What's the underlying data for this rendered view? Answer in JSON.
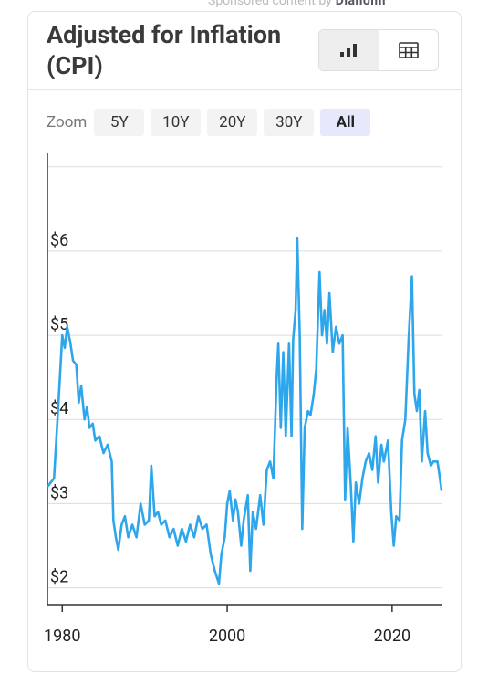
{
  "header": {
    "sponsor": "Sponsored content by",
    "brand": "Dianomi"
  },
  "card": {
    "title": "Adjusted for Inflation (CPI)",
    "zoom_label": "Zoom",
    "zoom_options": [
      "5Y",
      "10Y",
      "20Y",
      "30Y",
      "All"
    ],
    "active_zoom_index": 4
  },
  "chart_data": {
    "type": "line",
    "x": [
      1978.2,
      1978.6,
      1979.0,
      1979.3,
      1979.6,
      1980.0,
      1980.3,
      1980.6,
      1981.0,
      1981.3,
      1981.7,
      1982.0,
      1982.3,
      1982.7,
      1983.0,
      1983.3,
      1983.7,
      1984.0,
      1984.5,
      1985.0,
      1985.5,
      1986.0,
      1986.2,
      1986.5,
      1986.8,
      1987.2,
      1987.6,
      1988.0,
      1988.5,
      1989.0,
      1989.5,
      1990.0,
      1990.5,
      1990.8,
      1991.2,
      1991.6,
      1992.0,
      1992.5,
      1993.0,
      1993.5,
      1994.0,
      1994.5,
      1995.0,
      1995.5,
      1996.0,
      1996.5,
      1997.0,
      1997.5,
      1998.0,
      1998.5,
      1999.0,
      1999.3,
      1999.7,
      2000.0,
      2000.3,
      2000.7,
      2001.0,
      2001.3,
      2001.7,
      2002.0,
      2002.5,
      2002.8,
      2003.1,
      2003.5,
      2004.0,
      2004.4,
      2004.8,
      2005.2,
      2005.6,
      2006.0,
      2006.2,
      2006.5,
      2006.8,
      2007.1,
      2007.5,
      2007.8,
      2008.0,
      2008.3,
      2008.5,
      2008.8,
      2009.1,
      2009.4,
      2009.8,
      2010.1,
      2010.5,
      2010.8,
      2011.2,
      2011.5,
      2011.8,
      2012.1,
      2012.4,
      2012.8,
      2013.2,
      2013.6,
      2014.0,
      2014.3,
      2014.6,
      2015.0,
      2015.3,
      2015.6,
      2016.0,
      2016.4,
      2016.8,
      2017.2,
      2017.6,
      2018.0,
      2018.3,
      2018.7,
      2019.0,
      2019.5,
      2019.9,
      2020.2,
      2020.5,
      2020.9,
      2021.2,
      2021.6,
      2022.0,
      2022.4,
      2022.7,
      2023.0,
      2023.3,
      2023.6,
      2024.0,
      2024.3,
      2024.7,
      2025.0,
      2025.5,
      2025.8,
      2026.0
    ],
    "series": [
      {
        "name": "Adjusted for Inflation (CPI)",
        "color": "#2ea6ec",
        "values": [
          3.2,
          3.25,
          3.3,
          3.8,
          4.3,
          5.0,
          4.85,
          5.1,
          4.9,
          4.7,
          4.65,
          4.2,
          4.4,
          4.0,
          4.15,
          3.9,
          3.95,
          3.75,
          3.8,
          3.6,
          3.7,
          3.5,
          2.8,
          2.6,
          2.45,
          2.75,
          2.85,
          2.6,
          2.75,
          2.6,
          3.0,
          2.75,
          2.8,
          3.45,
          2.85,
          2.9,
          2.75,
          2.8,
          2.6,
          2.7,
          2.5,
          2.7,
          2.55,
          2.75,
          2.6,
          2.85,
          2.7,
          2.75,
          2.4,
          2.2,
          2.05,
          2.4,
          2.6,
          3.0,
          3.15,
          2.8,
          3.05,
          2.9,
          2.5,
          2.8,
          3.1,
          2.2,
          2.9,
          2.7,
          3.1,
          2.75,
          3.4,
          3.5,
          3.3,
          4.5,
          4.9,
          3.9,
          4.8,
          3.8,
          4.9,
          3.8,
          4.95,
          5.3,
          6.15,
          5.0,
          2.7,
          3.9,
          4.1,
          4.05,
          4.3,
          4.6,
          5.75,
          5.0,
          5.3,
          4.9,
          5.5,
          4.8,
          5.1,
          4.9,
          5.0,
          3.05,
          3.9,
          3.2,
          2.55,
          3.25,
          3.0,
          3.3,
          3.5,
          3.6,
          3.4,
          3.8,
          3.25,
          3.7,
          3.5,
          3.75,
          2.9,
          2.5,
          2.85,
          2.8,
          3.75,
          4.0,
          4.95,
          5.7,
          4.3,
          4.1,
          4.35,
          3.5,
          4.1,
          3.6,
          3.45,
          3.5,
          3.5,
          3.3,
          3.15
        ]
      }
    ],
    "xlim": [
      1978.2,
      2026.1
    ],
    "xticks": [
      1980,
      2000,
      2020
    ],
    "ylim": [
      1.8,
      7.16
    ],
    "yticks": [
      {
        "value": 2,
        "label": "$2"
      },
      {
        "value": 3,
        "label": "$3"
      },
      {
        "value": 4,
        "label": "$4"
      },
      {
        "value": 5,
        "label": "$5"
      },
      {
        "value": 6,
        "label": "$6"
      },
      {
        "value": 7,
        "label": null
      }
    ],
    "grid": true
  }
}
